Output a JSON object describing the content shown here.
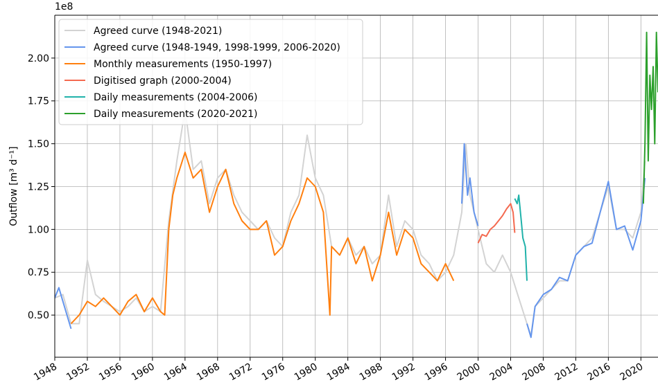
{
  "chart_data": {
    "type": "line",
    "y_label": "Outflow [m³ d⁻¹]",
    "y_offset_label": "1e8",
    "xlim": [
      1948,
      2022.1
    ],
    "xticks": [
      1948,
      1952,
      1956,
      1960,
      1964,
      1968,
      1972,
      1976,
      1980,
      1984,
      1988,
      1992,
      1996,
      2000,
      2004,
      2008,
      2012,
      2016,
      2020
    ],
    "ylim": [
      0.254,
      2.25
    ],
    "yticks": [
      {
        "value": 0.5,
        "label": "0.50"
      },
      {
        "value": 0.75,
        "label": "0.75"
      },
      {
        "value": 1.0,
        "label": "1.00"
      },
      {
        "value": 1.25,
        "label": "1.25"
      },
      {
        "value": 1.5,
        "label": "1.50"
      },
      {
        "value": 1.75,
        "label": "1.75"
      },
      {
        "value": 2.0,
        "label": "2.00"
      }
    ],
    "grid": true,
    "legend": "upper left",
    "series": [
      {
        "name": "Agreed curve (1948-2021)",
        "color": "#d3d3d3",
        "x": [
          1948,
          1949,
          1950,
          1951,
          1952,
          1953,
          1954,
          1955,
          1956,
          1957,
          1958,
          1959,
          1960,
          1961,
          1962,
          1963,
          1964,
          1965,
          1966,
          1967,
          1968,
          1969,
          1970,
          1971,
          1972,
          1973,
          1974,
          1975,
          1976,
          1977,
          1978,
          1979,
          1980,
          1981,
          1982,
          1983,
          1984,
          1985,
          1986,
          1987,
          1988,
          1989,
          1990,
          1991,
          1992,
          1993,
          1994,
          1995,
          1996,
          1997,
          1998,
          1998.5,
          1999,
          2000,
          2001,
          2002,
          2003,
          2004,
          2005,
          2006,
          2006.5,
          2007,
          2008,
          2009,
          2010,
          2011,
          2012,
          2013,
          2014,
          2015,
          2016,
          2017,
          2018,
          2019,
          2020,
          2020.5
        ],
        "values": [
          0.6,
          0.62,
          0.45,
          0.45,
          0.82,
          0.62,
          0.58,
          0.55,
          0.52,
          0.55,
          0.6,
          0.52,
          0.55,
          0.52,
          1.05,
          1.4,
          1.7,
          1.35,
          1.4,
          1.15,
          1.3,
          1.35,
          1.2,
          1.1,
          1.05,
          1.0,
          1.05,
          0.95,
          0.9,
          1.1,
          1.2,
          1.55,
          1.3,
          1.2,
          0.9,
          0.85,
          0.95,
          0.85,
          0.9,
          0.8,
          0.85,
          1.2,
          0.9,
          1.05,
          1.0,
          0.85,
          0.8,
          0.7,
          0.75,
          0.85,
          1.1,
          1.5,
          1.2,
          1.0,
          0.8,
          0.75,
          0.85,
          0.75,
          0.6,
          0.45,
          0.38,
          0.55,
          0.6,
          0.65,
          0.7,
          0.7,
          0.85,
          0.9,
          0.95,
          1.1,
          1.25,
          1.0,
          1.0,
          0.95,
          1.1,
          1.4
        ]
      },
      {
        "name": "Agreed curve (1948-1949, 1998-1999, 2006-2020)",
        "color": "#6495ed",
        "x": [
          1948,
          1948.5,
          1949,
          1949.5,
          1950,
          1950.5,
          1998,
          1998.3,
          1998.7,
          1999,
          1999.5,
          2000,
          2003,
          2006,
          2006.5,
          2007,
          2008,
          2009,
          2010,
          2011,
          2012,
          2013,
          2014,
          2015,
          2016,
          2017,
          2018,
          2019,
          2020,
          2020.5
        ],
        "values": [
          0.6,
          0.66,
          0.58,
          0.5,
          0.42,
          null,
          1.15,
          1.5,
          1.2,
          1.3,
          1.1,
          1.02,
          null,
          0.45,
          0.37,
          0.55,
          0.62,
          0.65,
          0.72,
          0.7,
          0.85,
          0.9,
          0.92,
          1.1,
          1.28,
          1.0,
          1.02,
          0.88,
          1.05,
          1.3
        ]
      },
      {
        "name": "Monthly measurements (1950-1997)",
        "color": "#ff7f0e",
        "x": [
          1950,
          1951,
          1952,
          1953,
          1954,
          1955,
          1956,
          1957,
          1958,
          1959,
          1960,
          1961,
          1961.5,
          1962,
          1962.5,
          1963,
          1964,
          1965,
          1966,
          1967,
          1968,
          1969,
          1970,
          1971,
          1972,
          1973,
          1974,
          1975,
          1976,
          1977,
          1978,
          1979,
          1980,
          1981,
          1981.8,
          1982,
          1983,
          1984,
          1985,
          1986,
          1987,
          1988,
          1989,
          1990,
          1991,
          1992,
          1993,
          1994,
          1995,
          1996,
          1997
        ],
        "values": [
          0.45,
          0.5,
          0.58,
          0.55,
          0.6,
          0.55,
          0.5,
          0.58,
          0.62,
          0.52,
          0.6,
          0.52,
          0.5,
          1.0,
          1.2,
          1.3,
          1.45,
          1.3,
          1.35,
          1.1,
          1.25,
          1.35,
          1.15,
          1.05,
          1.0,
          1.0,
          1.05,
          0.85,
          0.9,
          1.05,
          1.15,
          1.3,
          1.25,
          1.1,
          0.5,
          0.9,
          0.85,
          0.95,
          0.8,
          0.9,
          0.7,
          0.85,
          1.1,
          0.85,
          1.0,
          0.95,
          0.8,
          0.75,
          0.7,
          0.8,
          0.7
        ]
      },
      {
        "name": "Digitised graph (2000-2004)",
        "color": "#f4694f",
        "x": [
          2000,
          2000.5,
          2001,
          2001.5,
          2002,
          2002.5,
          2003,
          2003.5,
          2004,
          2004.3,
          2004.5
        ],
        "values": [
          0.92,
          0.97,
          0.96,
          1.0,
          1.02,
          1.05,
          1.08,
          1.12,
          1.15,
          1.1,
          0.98
        ]
      },
      {
        "name": "Daily measurements (2004-2006)",
        "color": "#20b2aa",
        "x": [
          2004.5,
          2004.8,
          2005,
          2005.3,
          2005.5,
          2005.8,
          2006
        ],
        "values": [
          1.18,
          1.15,
          1.2,
          1.05,
          0.95,
          0.9,
          0.7
        ]
      },
      {
        "name": "Daily measurements (2020-2021)",
        "color": "#2ca02c",
        "x": [
          2020.3,
          2020.5,
          2020.7,
          2020.9,
          2021.1,
          2021.3,
          2021.5,
          2021.7,
          2021.9,
          2022.1
        ],
        "values": [
          1.15,
          1.5,
          2.15,
          1.4,
          1.9,
          1.7,
          1.95,
          1.5,
          2.15,
          1.8
        ]
      }
    ]
  }
}
